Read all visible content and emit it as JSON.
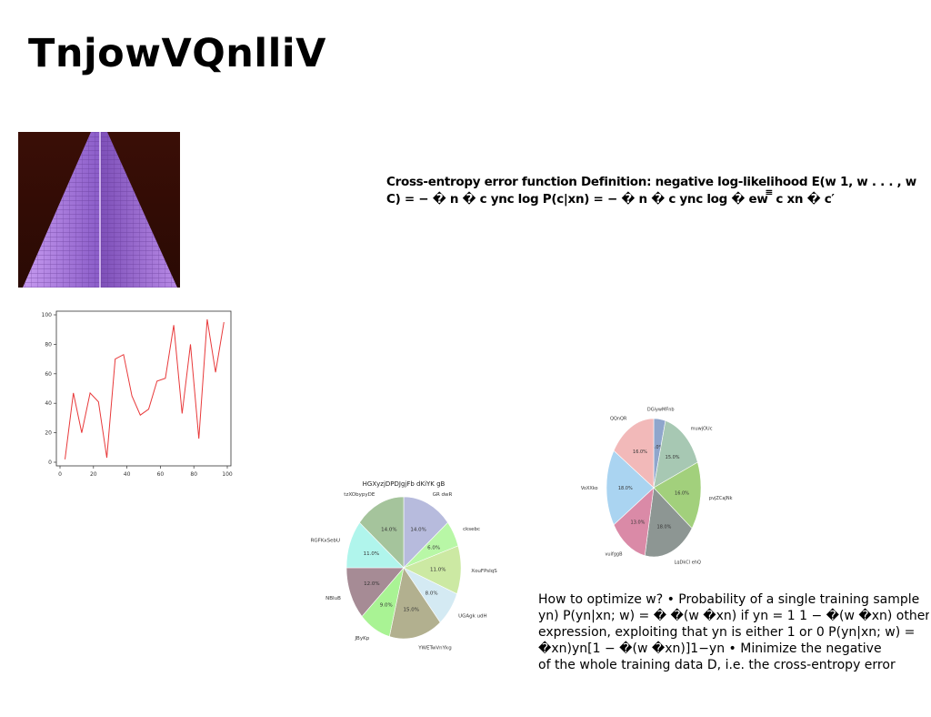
{
  "slide": {
    "title": "TnjowVQnlliV",
    "formula_text": "Cross-entropy error function Definition: negative log-likelihood E(w 1, w . . . , w C) = − � n � c ync log P(c|xn) = − � n � c ync log � ew ̅̅̅ c xn � c′",
    "body_lines": [
      "How to optimize w? • Probability of a single training sample",
      "yn) P(yn|xn; w) = � �(w �xn) if yn = 1 1 − �(w �xn) otherwise •",
      "expression, exploiting that yn is either 1 or 0 P(yn|xn; w) =",
      "�xn)yn[1 − �(w �xn)]1−yn • Minimize the negative",
      "of the whole training data D, i.e. the cross-entropy error"
    ]
  },
  "chart_data": [
    {
      "type": "line",
      "x": [
        3,
        8,
        13,
        18,
        23,
        28,
        33,
        38,
        43,
        48,
        53,
        58,
        63,
        68,
        73,
        78,
        83,
        88,
        93,
        98
      ],
      "y": [
        2,
        47,
        20,
        47,
        41,
        3,
        70,
        73,
        45,
        32,
        36,
        55,
        57,
        93,
        33,
        80,
        16,
        97,
        61,
        95
      ],
      "xlim": [
        0,
        100
      ],
      "ylim": [
        0,
        100
      ],
      "xticks": [
        0,
        20,
        40,
        60,
        80,
        100
      ],
      "yticks": [
        0,
        20,
        40,
        60,
        80,
        100
      ],
      "color": "#e8393a",
      "grid": false
    },
    {
      "type": "pie",
      "title": "HGXyzjDPDJgjFb dKiYK gB",
      "labels": [
        "GR dwR",
        "cksebc",
        "XouFPsIqS",
        "UGAgk udH",
        "YWETwVnYkg",
        "JByKp",
        "NBIuB",
        "RGFKxSebU",
        "tzXObypyDE"
      ],
      "values": [
        14.0,
        6.0,
        11.0,
        8.0,
        15.0,
        9.0,
        12.0,
        11.0,
        14.0
      ],
      "value_labels": [
        "14.0%",
        "6.0%",
        "11.0%",
        "8.0%",
        "15.0%",
        "9.0%",
        "12.0%",
        "11.0%",
        "14.0%"
      ],
      "colors": [
        "#b7bbdd",
        "#b8f7a6",
        "#cce9a3",
        "#d4eaf3",
        "#b2b08f",
        "#a9f394",
        "#a68b95",
        "#b0f5ec",
        "#a5c49c"
      ]
    },
    {
      "type": "pie",
      "labels": [
        "DGiywMFnb",
        "muwjOUc",
        "pvjZCaJNk",
        "LqDkCl ehQ",
        "vuifggB",
        "VoXXko",
        "QQnQR"
      ],
      "values": [
        4.0,
        15.0,
        16.0,
        18.0,
        13.0,
        18.0,
        16.0
      ],
      "value_labels": [
        "4.0%",
        "15.0%",
        "16.0%",
        "18.0%",
        "13.0%",
        "18.0%",
        "16.0%"
      ],
      "colors": [
        "#8fa6cc",
        "#a7c8b3",
        "#a2d07c",
        "#8d9693",
        "#da8aa7",
        "#aad4f1",
        "#f2b9b9"
      ]
    }
  ]
}
